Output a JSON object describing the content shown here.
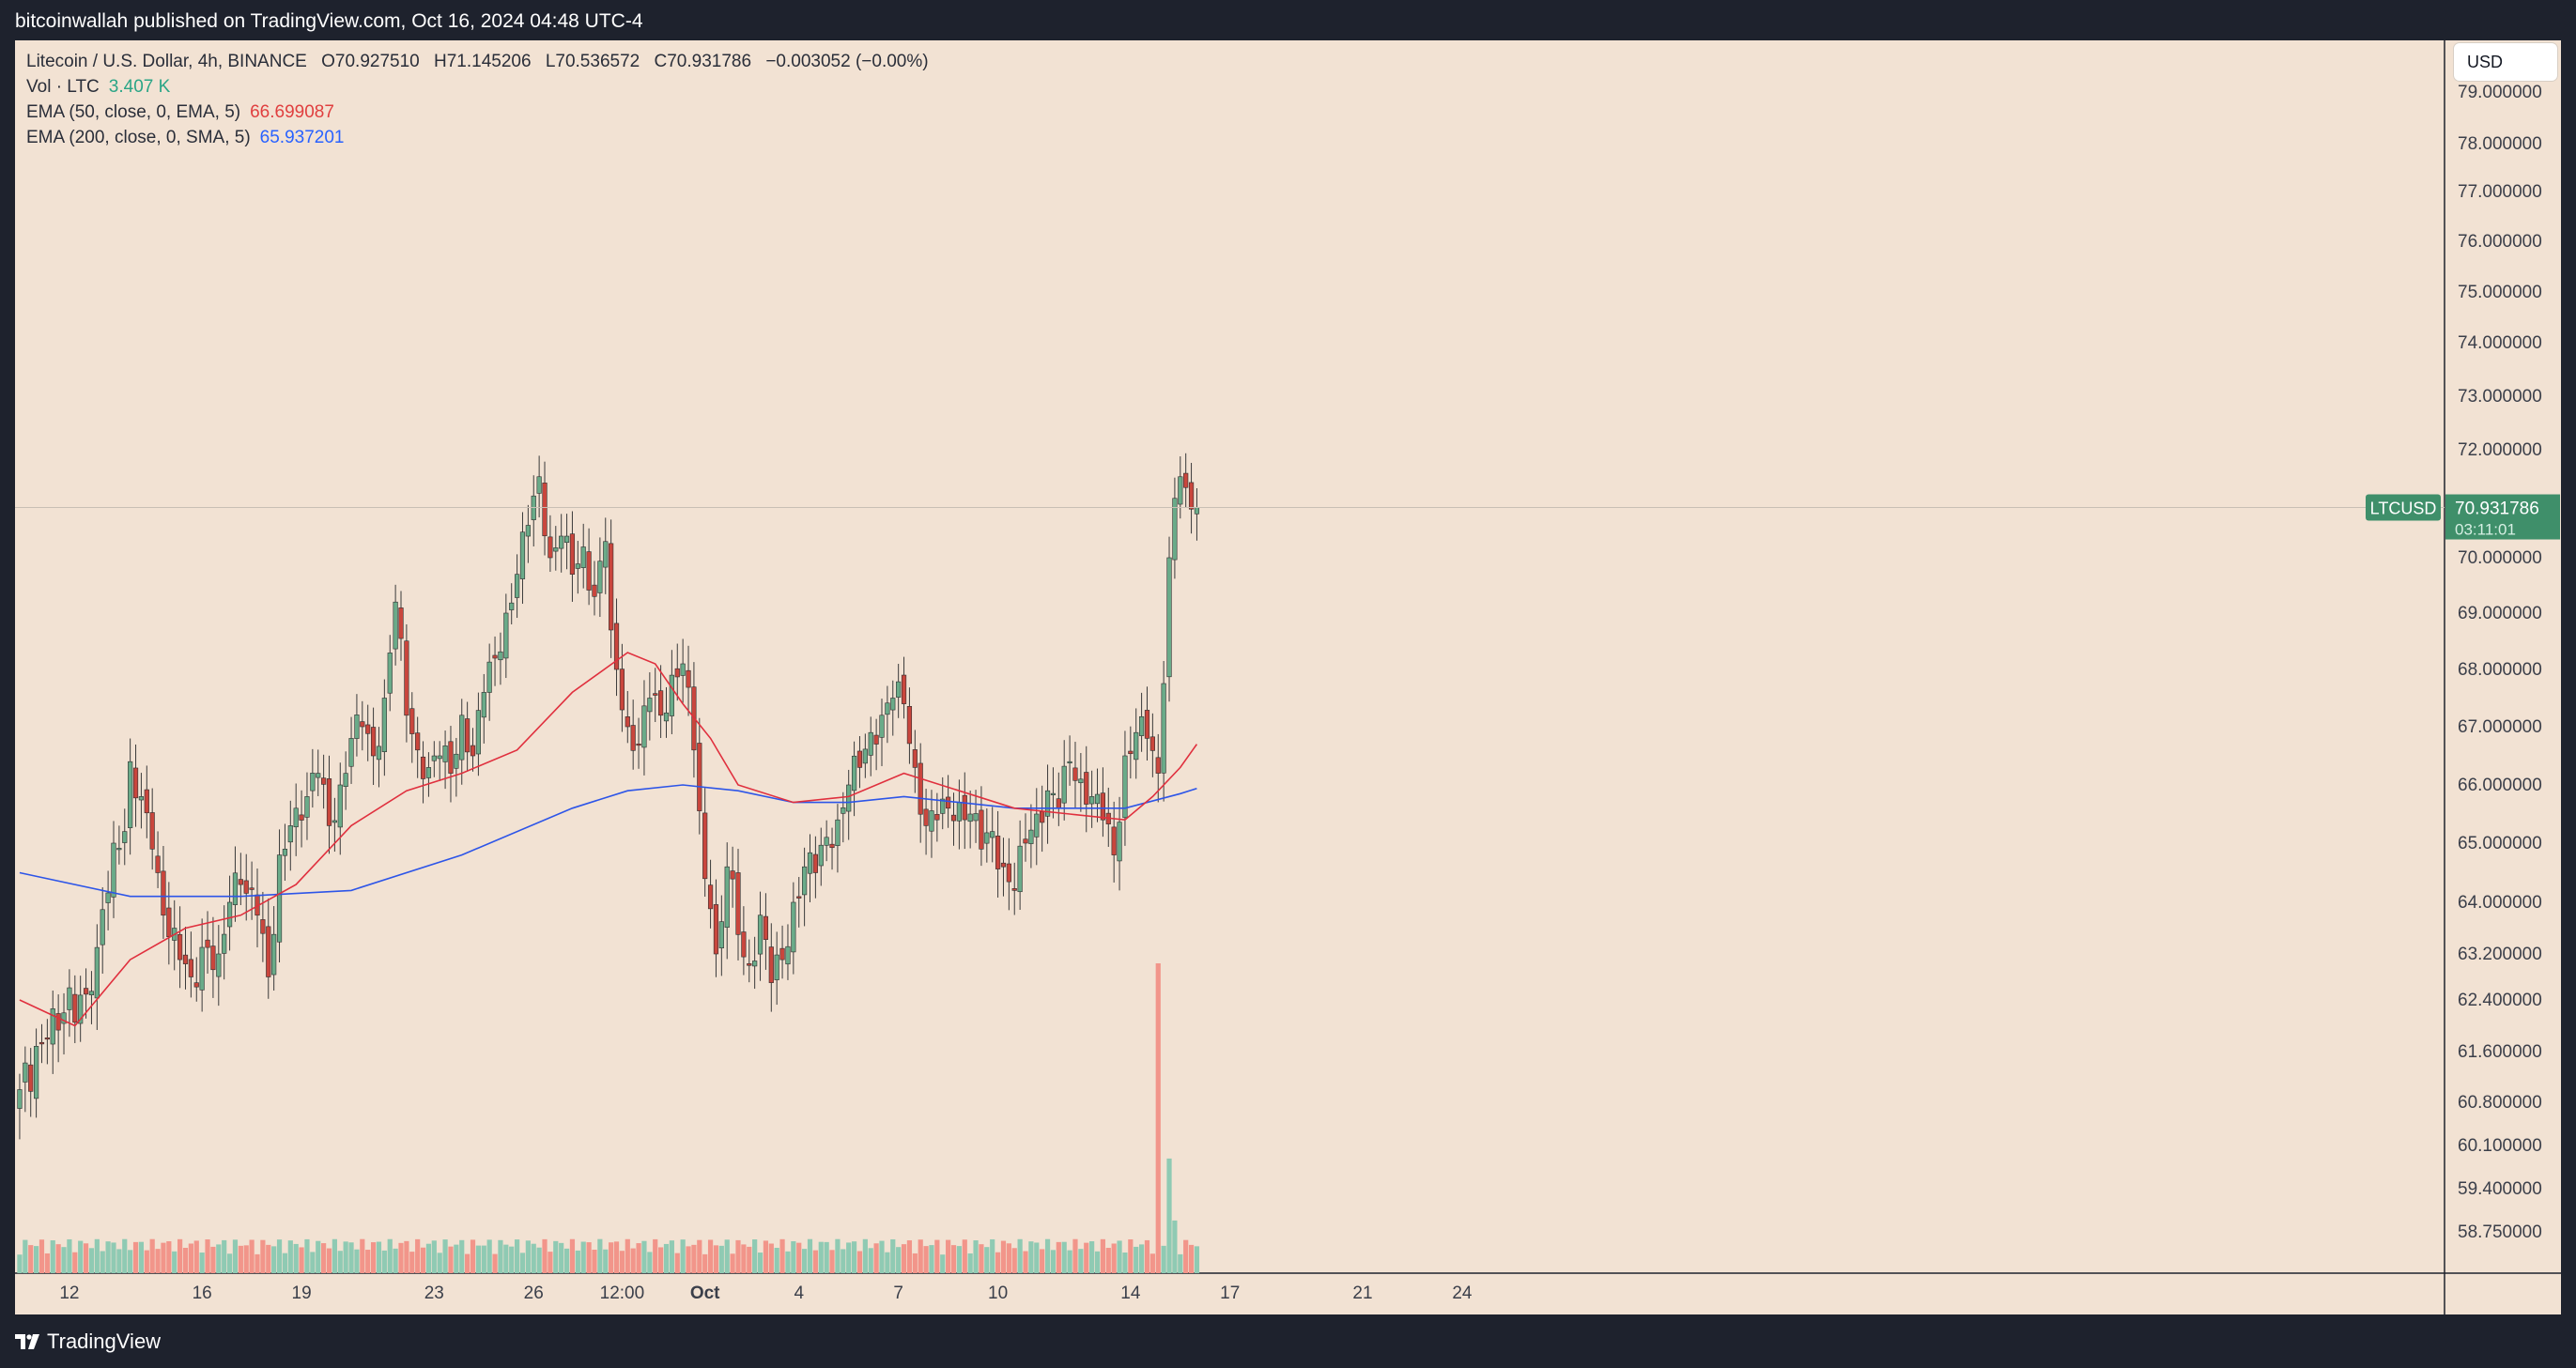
{
  "header": {
    "published_text": "bitcoinwallah published on TradingView.com, Oct 16, 2024 04:48 UTC-4"
  },
  "legend": {
    "title": "Litecoin / U.S. Dollar, 4h, BINANCE",
    "ohlc": [
      "O70.927510",
      "H71.145206",
      "L70.536572",
      "C70.931786",
      "−0.003052 (−0.00%)"
    ],
    "vol_label": "Vol · LTC",
    "vol_value": "3.407 K",
    "ema50_label": "EMA (50, close, 0, EMA, 5)",
    "ema50_value": "66.699087",
    "ema200_label": "EMA (200, close, 0, SMA, 5)",
    "ema200_value": "65.937201"
  },
  "currency_button": "USD",
  "symbol_tag": "LTCUSD",
  "last_price": "70.931786",
  "countdown": "03:11:01",
  "colors": {
    "up": "#6aab89",
    "down": "#c9463d",
    "ema50": "#e0303e",
    "ema200": "#2d55e8",
    "vol_up": "#8fcab3",
    "vol_down": "#f2958a",
    "background": "#f2e2d3"
  },
  "brand": {
    "name": "TradingView",
    "icon": "tradingview-logo"
  },
  "chart_data": {
    "type": "candlestick",
    "title": "Litecoin / U.S. Dollar, 4h, BINANCE",
    "price_axis_ticks": [
      "79.000000",
      "78.000000",
      "77.000000",
      "76.000000",
      "75.000000",
      "74.000000",
      "73.000000",
      "72.000000",
      "70.000000",
      "69.000000",
      "68.000000",
      "67.000000",
      "66.000000",
      "65.000000",
      "64.000000",
      "63.200000",
      "62.400000",
      "61.600000",
      "60.800000",
      "60.100000",
      "59.400000",
      "58.750000"
    ],
    "price_axis_values": [
      79.0,
      78.0,
      77.0,
      76.0,
      75.0,
      74.0,
      73.0,
      72.0,
      70.0,
      69.0,
      68.0,
      67.0,
      66.0,
      65.0,
      64.0,
      63.2,
      62.4,
      61.6,
      60.8,
      60.1,
      59.4,
      58.75
    ],
    "time_axis_ticks": [
      "12",
      "16",
      "19",
      "23",
      "26",
      "12:00",
      "Oct",
      "4",
      "7",
      "10",
      "14",
      "17",
      "21",
      "24"
    ],
    "time_axis_bar_index": [
      9,
      33,
      51,
      75,
      93,
      109,
      124,
      141,
      159,
      177,
      201,
      219,
      243,
      261
    ],
    "anchors": {
      "bar_index": [
        0,
        5,
        8,
        12,
        14,
        17,
        19,
        20,
        22,
        24,
        25,
        26,
        28,
        31,
        34,
        36,
        38,
        40,
        43,
        45,
        47,
        49,
        50,
        52,
        54,
        56,
        58,
        60,
        62,
        64,
        66,
        68,
        70,
        72,
        74,
        76,
        78,
        80,
        82,
        84,
        86,
        88,
        90,
        92,
        94,
        96,
        98,
        100,
        102,
        104,
        106,
        107,
        108,
        110,
        112,
        114,
        116,
        118,
        120,
        122,
        124,
        125,
        126,
        127,
        128,
        130,
        132,
        134,
        136,
        138,
        140,
        142,
        144,
        146,
        148,
        150,
        152,
        154,
        156,
        158,
        160,
        162,
        164,
        166,
        168,
        170,
        172,
        174,
        176,
        178,
        180,
        182,
        184,
        186,
        188,
        190,
        192,
        194,
        196,
        198,
        200,
        202,
        204,
        206,
        208,
        209,
        210,
        211,
        212,
        213
      ],
      "close": [
        61.0,
        61.8,
        62.2,
        62.5,
        63.3,
        65.0,
        65.2,
        66.4,
        65.8,
        64.9,
        64.5,
        63.8,
        63.6,
        62.8,
        63.3,
        63.2,
        64.0,
        64.3,
        63.8,
        62.8,
        64.8,
        65.3,
        65.6,
        65.8,
        66.2,
        65.3,
        66.0,
        66.8,
        67.0,
        66.5,
        67.5,
        69.2,
        67.2,
        66.6,
        66.3,
        66.5,
        66.2,
        67.2,
        66.5,
        67.6,
        68.2,
        69.0,
        69.7,
        70.6,
        71.5,
        70.0,
        70.4,
        69.7,
        70.2,
        69.3,
        70.3,
        68.7,
        68.0,
        67.0,
        66.7,
        67.5,
        67.2,
        67.9,
        68.1,
        66.6,
        64.4,
        63.9,
        63.2,
        63.7,
        64.6,
        63.5,
        63.0,
        63.8,
        62.7,
        63.1,
        64.0,
        64.6,
        64.5,
        65.1,
        65.4,
        66.0,
        66.3,
        66.9,
        67.2,
        67.5,
        67.4,
        66.3,
        65.3,
        65.4,
        65.6,
        65.7,
        65.5,
        64.9,
        65.2,
        64.6,
        64.2,
        65.0,
        65.5,
        65.9,
        65.6,
        66.4,
        66.1,
        65.8,
        65.4,
        64.8,
        66.5,
        66.9,
        66.8,
        66.2,
        70.0,
        71.1,
        71.5,
        71.3,
        70.9,
        70.93
      ]
    },
    "ema50": {
      "bar_index": [
        0,
        10,
        20,
        30,
        40,
        50,
        60,
        70,
        80,
        90,
        100,
        110,
        115,
        120,
        125,
        130,
        140,
        150,
        160,
        170,
        180,
        190,
        200,
        205,
        210,
        213
      ],
      "value": [
        62.4,
        62.0,
        63.1,
        63.6,
        63.8,
        64.3,
        65.3,
        65.9,
        66.2,
        66.6,
        67.6,
        68.3,
        68.1,
        67.4,
        66.8,
        66.0,
        65.7,
        65.8,
        66.2,
        65.9,
        65.6,
        65.5,
        65.4,
        65.8,
        66.3,
        66.7
      ]
    },
    "ema200": {
      "bar_index": [
        0,
        20,
        40,
        60,
        80,
        100,
        110,
        120,
        130,
        140,
        150,
        160,
        170,
        180,
        190,
        200,
        210,
        213
      ],
      "value": [
        64.5,
        64.1,
        64.1,
        64.2,
        64.8,
        65.6,
        65.9,
        66.0,
        65.9,
        65.7,
        65.7,
        65.8,
        65.7,
        65.6,
        65.6,
        65.6,
        65.85,
        65.94
      ]
    },
    "volume_note": "volume histogram per bar; spike near 15 Oct",
    "volume_spike_bars": [
      {
        "bar_index": 206,
        "relative": 1.0
      },
      {
        "bar_index": 208,
        "relative": 0.37
      },
      {
        "bar_index": 209,
        "relative": 0.17
      }
    ]
  }
}
